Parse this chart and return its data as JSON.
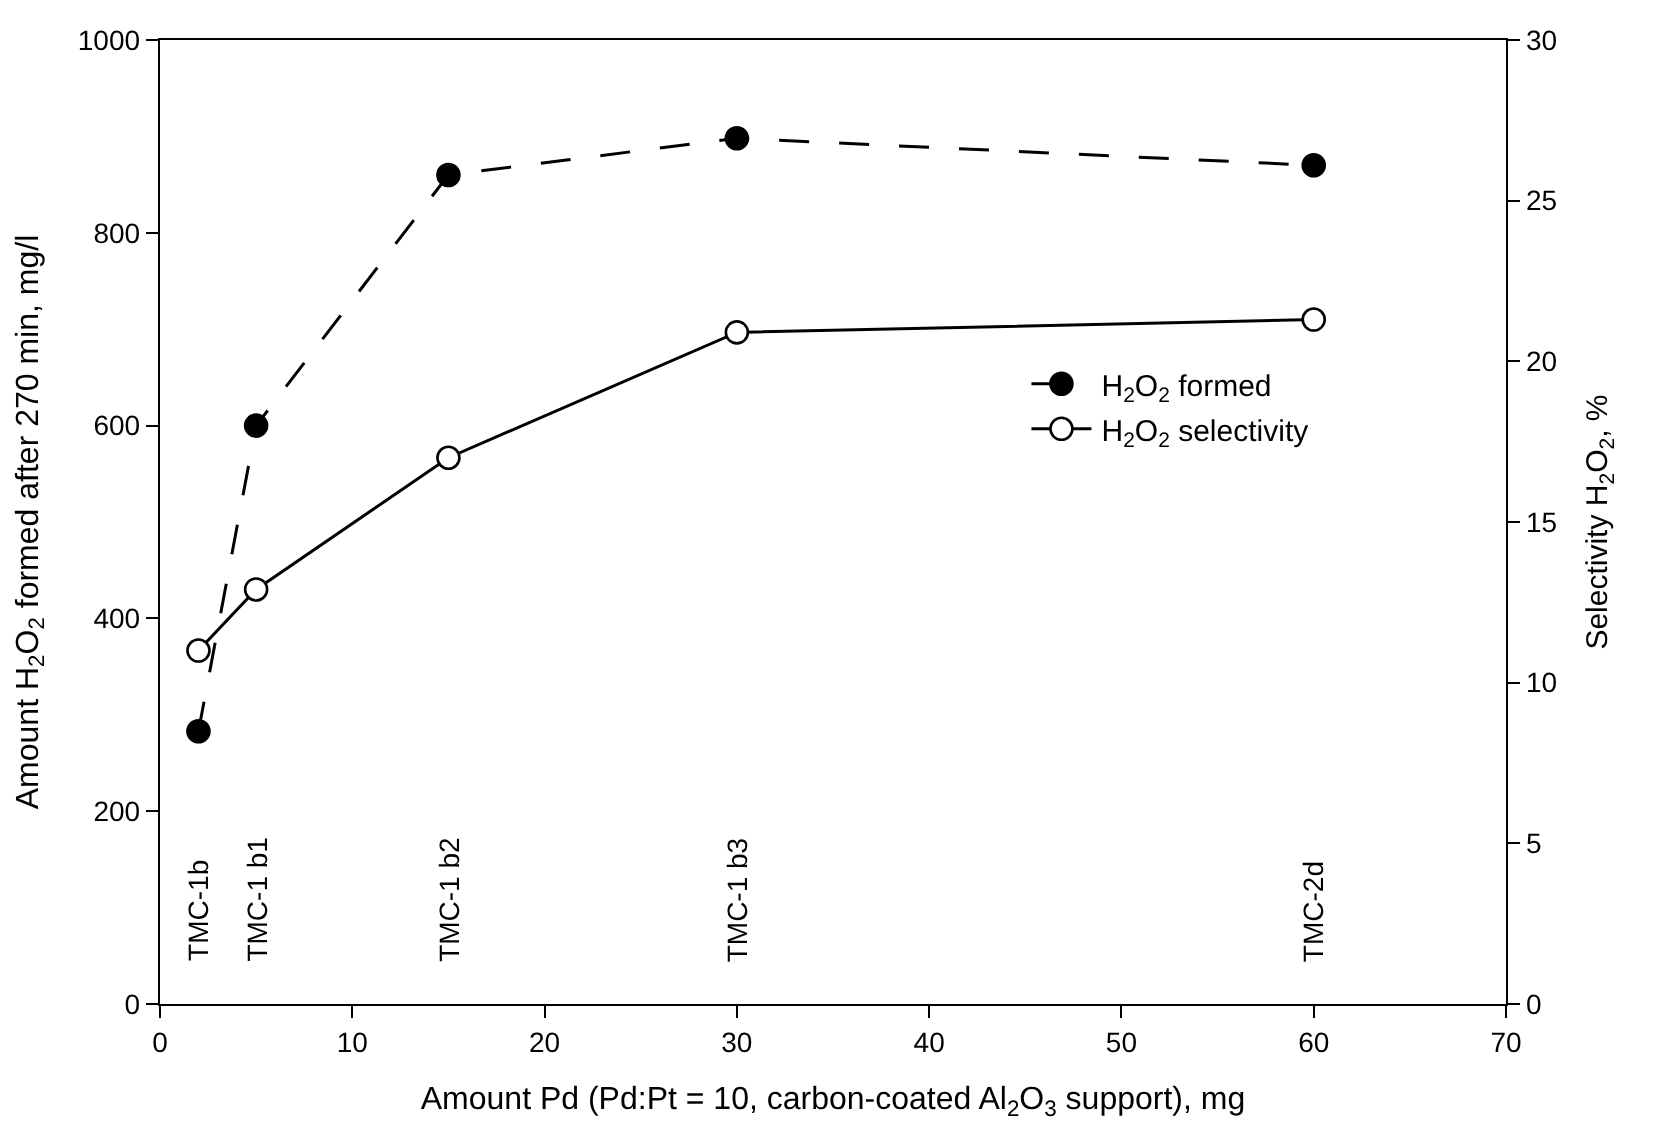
{
  "chart_data": {
    "type": "line",
    "xlabel": "Amount Pd (Pd:Pt = 10, carbon-coated Al$_{2}$O$_{3}$ support), mg",
    "ylabel": "Amount H$_{2}$O$_{2}$ formed after 270 min, mg/l",
    "y2label": "Selectivity H$_{2}$O$_{2}$, %",
    "x": [
      2,
      5,
      15,
      30,
      60
    ],
    "series": [
      {
        "name": "H$_{2}$O$_{2}$ formed",
        "color": "#000000",
        "values": [
          283,
          600,
          860,
          898,
          870
        ],
        "line_style": "dashed",
        "marker": "circle"
      },
      {
        "name": "H$_{2}$O$_{2}$ selectivity",
        "color": "#000000",
        "values": [
          11.0,
          12.9,
          17.0,
          20.9,
          21.3
        ],
        "axis": "y2",
        "line_style": "solid",
        "marker": "circle"
      }
    ],
    "xlim": [
      0,
      70
    ],
    "xticks": [
      0,
      10,
      20,
      30,
      40,
      50,
      60,
      70
    ],
    "ylim": [
      0,
      1000
    ],
    "yticks": [
      0,
      200,
      400,
      600,
      800,
      1000
    ],
    "y2lim": [
      0,
      30
    ],
    "y2ticks": [
      0,
      5,
      10,
      15,
      20,
      25,
      30
    ],
    "annotations": [
      "TMC-1b",
      "TMC-1 b1",
      "TMC-1 b2",
      "TMC-1 b3",
      "TMC-2d"
    ],
    "legend": "right"
  }
}
